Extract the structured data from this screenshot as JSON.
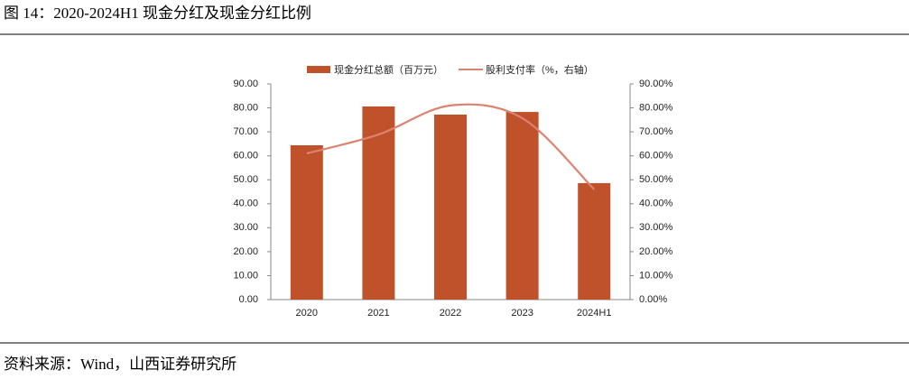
{
  "header": {
    "title": "图 14：2020-2024H1 现金分红及现金分红比例"
  },
  "footer": {
    "source": "资料来源：Wind，山西证券研究所"
  },
  "chart_data": {
    "type": "combo",
    "categories": [
      "2020",
      "2021",
      "2022",
      "2023",
      "2024H1"
    ],
    "series": [
      {
        "name": "现金分红总额（百万元）",
        "type": "bar",
        "color": "#c0522b",
        "values": [
          64.4,
          80.6,
          77.2,
          78.3,
          48.6
        ]
      },
      {
        "name": "股利支付率（%，右轴）",
        "type": "line",
        "axis": "y2",
        "smooth": true,
        "color": "#dc8270",
        "values": [
          61,
          68.9,
          81,
          75.7,
          46
        ]
      }
    ],
    "ylim": [
      0,
      90
    ],
    "yticks": [
      {
        "value": 0,
        "label": "0.00"
      },
      {
        "value": 10,
        "label": "10.00"
      },
      {
        "value": 20,
        "label": "20.00"
      },
      {
        "value": 30,
        "label": "30.00"
      },
      {
        "value": 40,
        "label": "40.00"
      },
      {
        "value": 50,
        "label": "50.00"
      },
      {
        "value": 60,
        "label": "60.00"
      },
      {
        "value": 70,
        "label": "70.00"
      },
      {
        "value": 80,
        "label": "80.00"
      },
      {
        "value": 90,
        "label": "90.00"
      }
    ],
    "y2lim": [
      0,
      90
    ],
    "y2ticks": [
      {
        "value": 0,
        "label": "0.00%"
      },
      {
        "value": 10,
        "label": "10.00%"
      },
      {
        "value": 20,
        "label": "20.00%"
      },
      {
        "value": 30,
        "label": "30.00%"
      },
      {
        "value": 40,
        "label": "40.00%"
      },
      {
        "value": 50,
        "label": "50.00%"
      },
      {
        "value": 60,
        "label": "60.00%"
      },
      {
        "value": 70,
        "label": "70.00%"
      },
      {
        "value": 80,
        "label": "80.00%"
      },
      {
        "value": 90,
        "label": "90.00%"
      }
    ],
    "grid": false,
    "legend": "top"
  }
}
